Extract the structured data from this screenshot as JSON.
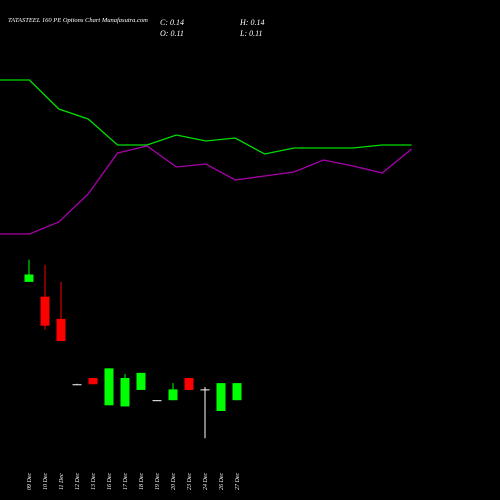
{
  "chart_data": {
    "type": "candlestick",
    "title": "TATASTEEL 160 PE Options Chart Munafasutra.com",
    "ohlc_labels": [
      "C: 0.14",
      "H: 0.14",
      "O: 0.11",
      "L: 0.11"
    ],
    "categories": [
      "09 Dec",
      "10 Dec",
      "11 Dec",
      "12 Dec",
      "13 Dec",
      "16 Dec",
      "17 Dec",
      "18 Dec",
      "19 Dec",
      "20 Dec",
      "23 Dec",
      "24 Dec",
      "26 Dec",
      "27 Dec"
    ],
    "open": [
      0.318,
      0.292,
      0.253,
      0.138,
      0.149,
      0.101,
      0.099,
      0.128,
      0.11,
      0.11,
      0.149,
      0.129,
      0.091,
      0.11
    ],
    "high": [
      0.357,
      0.348,
      0.318,
      0.139,
      0.149,
      0.166,
      0.156,
      0.158,
      0.11,
      0.14,
      0.149,
      0.133,
      0.14,
      0.14
    ],
    "low": [
      0.318,
      0.234,
      0.214,
      0.138,
      0.138,
      0.101,
      0.099,
      0.128,
      0.11,
      0.11,
      0.128,
      0.043,
      0.091,
      0.11
    ],
    "close": [
      0.331,
      0.241,
      0.214,
      0.138,
      0.138,
      0.166,
      0.149,
      0.158,
      0.11,
      0.129,
      0.128,
      0.129,
      0.14,
      0.14
    ],
    "up_color": "#00ff00",
    "down_color": "#ff0000",
    "flat_color": "#ffffff",
    "ylim": [
      0.04,
      0.36
    ],
    "line_ylim": [
      0,
      100
    ],
    "line_series": [
      {
        "color": "#00dd00",
        "values": [
          90,
          90,
          75.5,
          70.5,
          57.5,
          57.5,
          62.5,
          59.5,
          61,
          53,
          56,
          56,
          56,
          57.5,
          57.5
        ]
      },
      {
        "color": "#aa00aa",
        "values": [
          13,
          13,
          19,
          33,
          53.5,
          57,
          46.5,
          48,
          40,
          42,
          44,
          50,
          47,
          43.5,
          55.5
        ]
      }
    ]
  }
}
